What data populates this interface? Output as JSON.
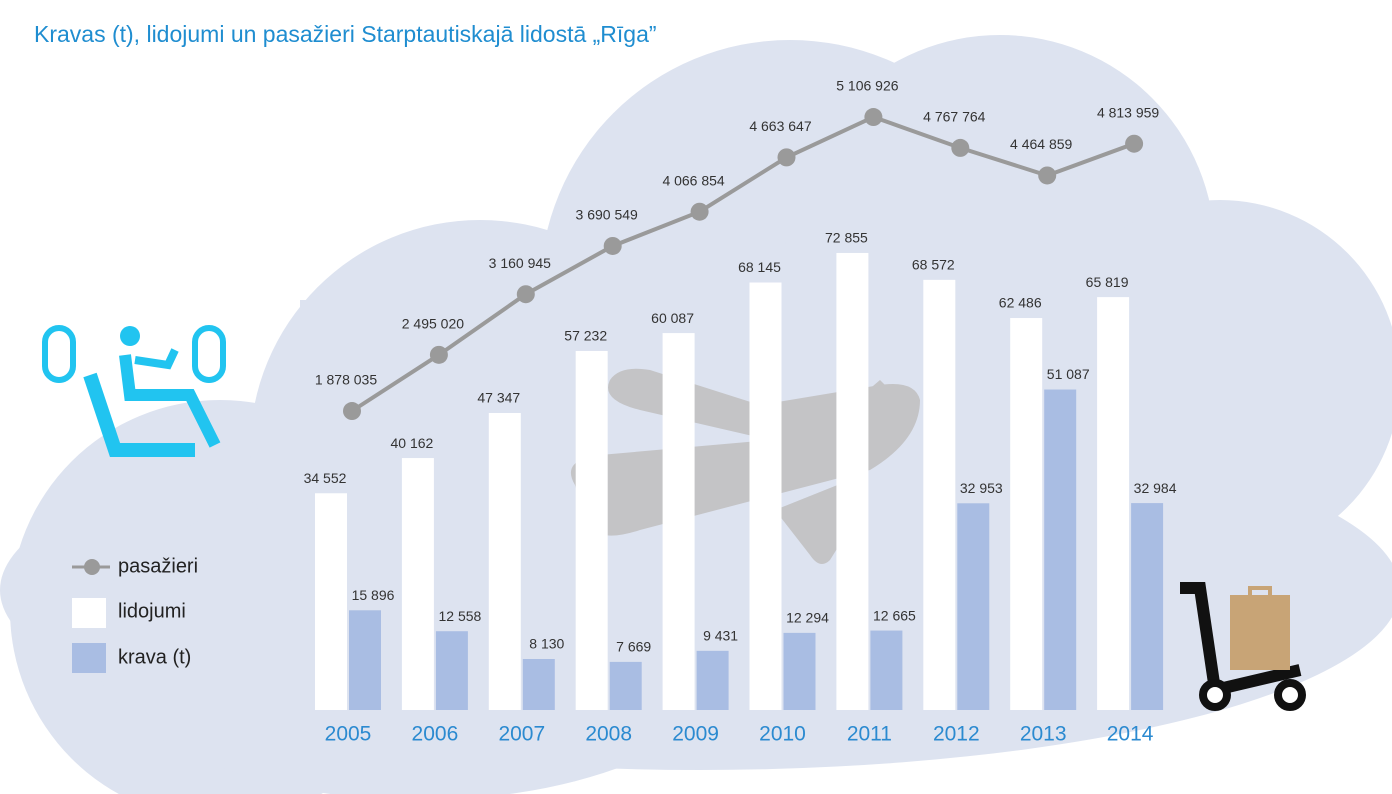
{
  "chart_data": {
    "type": "bar-line",
    "title": "Kravas (t), lidojumi un pasažieri Starptautiskajā lidostā „Rīga”",
    "categories": [
      "2005",
      "2006",
      "2007",
      "2008",
      "2009",
      "2010",
      "2011",
      "2012",
      "2013",
      "2014"
    ],
    "series": [
      {
        "name": "lidojumi",
        "type": "bar",
        "color": "#ffffff",
        "values": [
          34552,
          40162,
          47347,
          57232,
          60087,
          68145,
          72855,
          68572,
          62486,
          65819
        ],
        "value_labels": [
          "34 552",
          "40 162",
          "47 347",
          "57 232",
          "60 087",
          "68 145",
          "72 855",
          "68 572",
          "62 486",
          "65 819"
        ]
      },
      {
        "name": "krava (t)",
        "type": "bar",
        "color": "#a9bde3",
        "values": [
          15896,
          12558,
          8130,
          7669,
          9431,
          12294,
          12665,
          32953,
          51087,
          32984
        ],
        "value_labels": [
          "15 896",
          "12 558",
          "8 130",
          "7 669",
          "9 431",
          "12 294",
          "12 665",
          "32 953",
          "51 087",
          "32 984"
        ]
      },
      {
        "name": "pasažieri",
        "type": "line",
        "color": "#9a9a9a",
        "values": [
          1878035,
          2495020,
          3160945,
          3690549,
          4066854,
          4663647,
          5106926,
          4767764,
          4464859,
          4813959
        ],
        "value_labels": [
          "1 878 035",
          "2 495 020",
          "3 160 945",
          "3 690 549",
          "4 066 854",
          "4 663 647",
          "5 106 926",
          "4 767 764",
          "4 464 859",
          "4 813 959"
        ]
      }
    ]
  }
}
